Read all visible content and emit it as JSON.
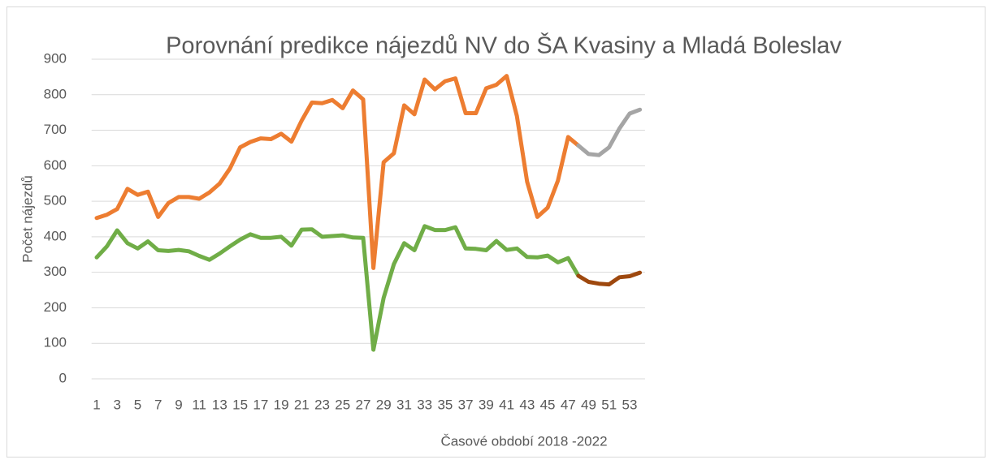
{
  "chart_data": {
    "type": "line",
    "title": "Porovnání predikce nájezdů NV do ŠA Kvasiny a Mladá Boleslav",
    "x_label": "Časové období 2018 -2022",
    "y_label": "Počet nájezdů",
    "categories": [
      1,
      null,
      3,
      null,
      5,
      null,
      7,
      null,
      9,
      null,
      11,
      null,
      13,
      null,
      15,
      null,
      17,
      null,
      19,
      null,
      21,
      null,
      23,
      null,
      25,
      null,
      27,
      null,
      29,
      null,
      31,
      null,
      33,
      null,
      35,
      null,
      37,
      null,
      39,
      null,
      41,
      null,
      43,
      null,
      45,
      null,
      47,
      null,
      49,
      null,
      51,
      null,
      53,
      null
    ],
    "series": [
      {
        "color": "#ED7D31",
        "values": [
          453,
          462,
          478,
          535,
          518,
          527,
          456,
          495,
          512,
          512,
          507,
          525,
          550,
          592,
          652,
          667,
          677,
          675,
          690,
          668,
          727,
          778,
          776,
          785,
          762,
          812,
          787,
          312,
          610,
          635,
          770,
          745,
          843,
          815,
          838,
          846,
          748,
          748,
          818,
          828,
          853,
          740,
          555,
          456,
          482,
          558,
          681,
          657,
          null,
          null,
          null,
          null,
          null,
          null
        ]
      },
      {
        "color": "#A5A5A5",
        "values": [
          null,
          null,
          null,
          null,
          null,
          null,
          null,
          null,
          null,
          null,
          null,
          null,
          null,
          null,
          null,
          null,
          null,
          null,
          null,
          null,
          null,
          null,
          null,
          null,
          null,
          null,
          null,
          null,
          null,
          null,
          null,
          null,
          null,
          null,
          null,
          null,
          null,
          null,
          null,
          null,
          null,
          null,
          null,
          null,
          null,
          null,
          null,
          657,
          633,
          630,
          652,
          705,
          747,
          758
        ]
      },
      {
        "color": "#70AD47",
        "values": [
          342,
          373,
          418,
          382,
          367,
          387,
          362,
          360,
          363,
          359,
          346,
          335,
          353,
          373,
          392,
          407,
          397,
          397,
          400,
          375,
          420,
          421,
          400,
          402,
          404,
          398,
          397,
          82,
          228,
          323,
          382,
          362,
          430,
          419,
          419,
          427,
          367,
          366,
          362,
          388,
          363,
          367,
          343,
          342,
          347,
          328,
          340,
          290,
          null,
          null,
          null,
          null,
          null,
          null
        ]
      },
      {
        "color": "#9E480E",
        "values": [
          null,
          null,
          null,
          null,
          null,
          null,
          null,
          null,
          null,
          null,
          null,
          null,
          null,
          null,
          null,
          null,
          null,
          null,
          null,
          null,
          null,
          null,
          null,
          null,
          null,
          null,
          null,
          null,
          null,
          null,
          null,
          null,
          null,
          null,
          null,
          null,
          null,
          null,
          null,
          null,
          null,
          null,
          null,
          null,
          null,
          null,
          null,
          290,
          273,
          268,
          266,
          286,
          289,
          299
        ]
      }
    ],
    "ylim": [
      0,
      900
    ],
    "yticks": [
      0,
      100,
      200,
      300,
      400,
      500,
      600,
      700,
      800,
      900
    ],
    "grid": true
  }
}
